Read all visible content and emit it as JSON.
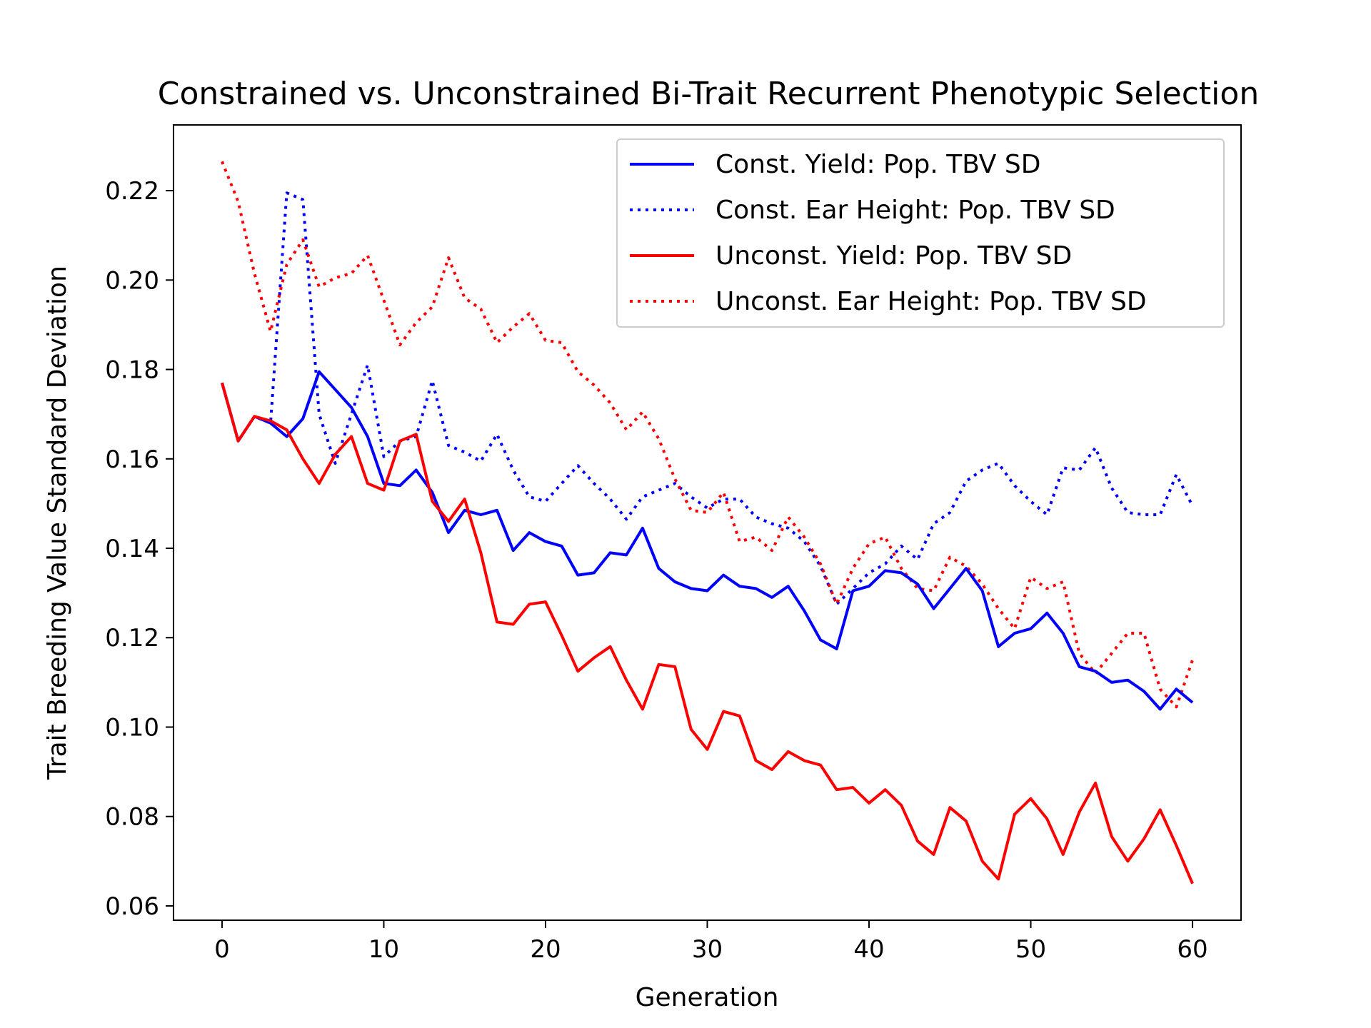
{
  "chart_data": {
    "type": "line",
    "title": "Constrained vs. Unconstrained Bi-Trait Recurrent Phenotypic Selection",
    "xlabel": "Generation",
    "ylabel": "Trait Breeding Value Standard Deviation",
    "xlim": [
      -3,
      63
    ],
    "ylim": [
      0.0568,
      0.2347
    ],
    "xticks": [
      0,
      10,
      20,
      30,
      40,
      50,
      60
    ],
    "xtick_labels": [
      "0",
      "10",
      "20",
      "30",
      "40",
      "50",
      "60"
    ],
    "yticks": [
      0.06,
      0.08,
      0.1,
      0.12,
      0.14,
      0.16,
      0.18,
      0.2,
      0.22
    ],
    "ytick_labels": [
      "0.06",
      "0.08",
      "0.10",
      "0.12",
      "0.14",
      "0.16",
      "0.18",
      "0.20",
      "0.22"
    ],
    "grid": false,
    "legend_position": "top-right",
    "x": [
      0,
      1,
      2,
      3,
      4,
      5,
      6,
      7,
      8,
      9,
      10,
      11,
      12,
      13,
      14,
      15,
      16,
      17,
      18,
      19,
      20,
      21,
      22,
      23,
      24,
      25,
      26,
      27,
      28,
      29,
      30,
      31,
      32,
      33,
      34,
      35,
      36,
      37,
      38,
      39,
      40,
      41,
      42,
      43,
      44,
      45,
      46,
      47,
      48,
      49,
      50,
      51,
      52,
      53,
      54,
      55,
      56,
      57,
      58,
      59,
      60
    ],
    "series": [
      {
        "name": "Const. Yield: Pop. TBV SD",
        "color": "#0000ff",
        "style": "solid",
        "values": [
          0.177,
          0.164,
          0.1695,
          0.168,
          0.165,
          0.169,
          0.1795,
          0.1755,
          0.1715,
          0.165,
          0.1545,
          0.154,
          0.1575,
          0.1525,
          0.1435,
          0.1485,
          0.1475,
          0.1485,
          0.1395,
          0.1435,
          0.1415,
          0.1405,
          0.134,
          0.1345,
          0.139,
          0.1385,
          0.1445,
          0.1355,
          0.1325,
          0.131,
          0.1305,
          0.134,
          0.1315,
          0.131,
          0.129,
          0.1315,
          0.126,
          0.1195,
          0.1175,
          0.1305,
          0.1315,
          0.135,
          0.1345,
          0.132,
          0.1265,
          0.131,
          0.1355,
          0.1305,
          0.118,
          0.121,
          0.122,
          0.1255,
          0.121,
          0.1135,
          0.1125,
          0.11,
          0.1105,
          0.108,
          0.104,
          0.1085,
          0.1055
        ]
      },
      {
        "name": "Const. Ear Height: Pop. TBV SD",
        "color": "#0000ff",
        "style": "dotted",
        "values": [
          0.177,
          0.164,
          0.1695,
          0.168,
          0.2195,
          0.218,
          0.17,
          0.159,
          0.17,
          0.181,
          0.1605,
          0.164,
          0.165,
          0.1775,
          0.163,
          0.1615,
          0.1595,
          0.1655,
          0.1575,
          0.1515,
          0.1505,
          0.1545,
          0.1585,
          0.1545,
          0.151,
          0.1465,
          0.1515,
          0.153,
          0.1545,
          0.1515,
          0.149,
          0.151,
          0.151,
          0.147,
          0.1455,
          0.1445,
          0.1415,
          0.136,
          0.1275,
          0.131,
          0.1345,
          0.1365,
          0.1405,
          0.1375,
          0.1455,
          0.148,
          0.155,
          0.1575,
          0.159,
          0.154,
          0.1505,
          0.1475,
          0.158,
          0.1575,
          0.1625,
          0.1535,
          0.148,
          0.1475,
          0.1475,
          0.1565,
          0.1495
        ]
      },
      {
        "name": "Unconst. Yield: Pop. TBV SD",
        "color": "#ff0000",
        "style": "solid",
        "values": [
          0.177,
          0.164,
          0.1695,
          0.1685,
          0.1665,
          0.16,
          0.1545,
          0.161,
          0.165,
          0.1545,
          0.153,
          0.164,
          0.1655,
          0.1505,
          0.146,
          0.151,
          0.139,
          0.1235,
          0.123,
          0.1275,
          0.128,
          0.1205,
          0.1125,
          0.1155,
          0.118,
          0.1105,
          0.104,
          0.114,
          0.1135,
          0.0995,
          0.095,
          0.1035,
          0.1025,
          0.0925,
          0.0905,
          0.0945,
          0.0925,
          0.0915,
          0.086,
          0.0865,
          0.083,
          0.086,
          0.0825,
          0.0745,
          0.0715,
          0.082,
          0.079,
          0.07,
          0.066,
          0.0805,
          0.084,
          0.0795,
          0.0715,
          0.081,
          0.0875,
          0.0755,
          0.07,
          0.075,
          0.0815,
          0.0735,
          0.065
        ]
      },
      {
        "name": "Unconst. Ear Height: Pop. TBV SD",
        "color": "#ff0000",
        "style": "dotted",
        "values": [
          0.2265,
          0.2175,
          0.2015,
          0.1885,
          0.2035,
          0.209,
          0.1985,
          0.2005,
          0.2015,
          0.2055,
          0.1955,
          0.1855,
          0.1905,
          0.194,
          0.205,
          0.196,
          0.1935,
          0.186,
          0.1895,
          0.1925,
          0.1865,
          0.186,
          0.1795,
          0.1765,
          0.1725,
          0.1665,
          0.1705,
          0.1645,
          0.1555,
          0.1485,
          0.148,
          0.1525,
          0.1415,
          0.1425,
          0.1395,
          0.147,
          0.1425,
          0.1365,
          0.1275,
          0.1355,
          0.141,
          0.1425,
          0.1355,
          0.131,
          0.1305,
          0.138,
          0.136,
          0.132,
          0.1265,
          0.122,
          0.1335,
          0.131,
          0.1325,
          0.1165,
          0.112,
          0.1165,
          0.121,
          0.121,
          0.1085,
          0.1045,
          0.115
        ]
      }
    ]
  }
}
